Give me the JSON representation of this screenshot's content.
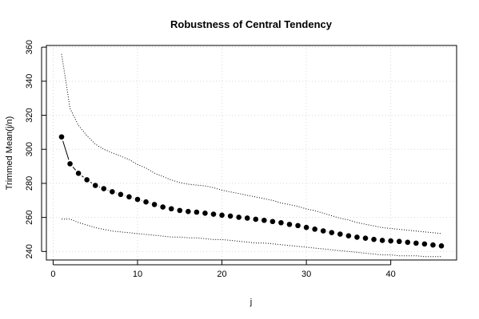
{
  "chart_data": {
    "type": "scatter",
    "title": "Robustness of Central Tendency",
    "xlabel": "j",
    "ylabel": "Trimmed Mean(j/n)",
    "xlim": [
      -0.8,
      47.8
    ],
    "ylim": [
      235,
      361
    ],
    "x_ticks": [
      0,
      10,
      20,
      30,
      40
    ],
    "y_ticks": [
      240,
      260,
      280,
      300,
      320,
      340,
      360
    ],
    "grid": true,
    "legend": "none",
    "series": [
      {
        "role": "trimmed-mean",
        "style": "points",
        "color": "#000000",
        "x": [
          1,
          2,
          3,
          4,
          5,
          6,
          7,
          8,
          9,
          10,
          11,
          12,
          13,
          14,
          15,
          16,
          17,
          18,
          19,
          20,
          21,
          22,
          23,
          24,
          25,
          26,
          27,
          28,
          29,
          30,
          31,
          32,
          33,
          34,
          35,
          36,
          37,
          38,
          39,
          40,
          41,
          42,
          43,
          44,
          45,
          46
        ],
        "y": [
          307.3,
          291.5,
          285.9,
          282.1,
          278.8,
          276.9,
          275.1,
          273.5,
          272.1,
          270.6,
          269.1,
          267.6,
          266.1,
          265.1,
          264.1,
          263.5,
          263.1,
          262.5,
          261.9,
          261.3,
          260.8,
          260.1,
          259.6,
          258.9,
          258.3,
          257.6,
          256.9,
          255.9,
          255.2,
          254.1,
          253.1,
          252.1,
          251.1,
          250.2,
          249.2,
          248.4,
          247.8,
          247.1,
          246.5,
          246.2,
          245.9,
          245.4,
          244.9,
          244.4,
          243.8,
          243.3
        ]
      },
      {
        "role": "upper-bound",
        "style": "dotted",
        "color": "#000000",
        "x": [
          1,
          2,
          3,
          4,
          5,
          6,
          7,
          8,
          9,
          10,
          11,
          12,
          13,
          14,
          15,
          16,
          17,
          18,
          19,
          20,
          21,
          22,
          23,
          24,
          25,
          26,
          27,
          28,
          29,
          30,
          31,
          32,
          33,
          34,
          35,
          36,
          37,
          38,
          39,
          40,
          41,
          42,
          43,
          44,
          45,
          46
        ],
        "y": [
          356,
          324,
          314,
          308,
          303,
          300,
          298,
          296,
          294,
          291,
          289,
          286,
          284,
          282,
          280.5,
          279.5,
          279,
          278.5,
          277.5,
          276,
          275,
          274,
          273,
          272,
          271,
          270,
          268.5,
          267.5,
          266.5,
          265,
          264,
          262.5,
          261,
          259.5,
          258.5,
          257,
          256,
          255,
          254,
          253.5,
          253,
          252.5,
          252,
          251.5,
          251,
          250.5
        ]
      },
      {
        "role": "lower-bound",
        "style": "dotted",
        "color": "#000000",
        "x": [
          1,
          2,
          3,
          4,
          5,
          6,
          7,
          8,
          9,
          10,
          11,
          12,
          13,
          14,
          15,
          16,
          17,
          18,
          19,
          20,
          21,
          22,
          23,
          24,
          25,
          26,
          27,
          28,
          29,
          30,
          31,
          32,
          33,
          34,
          35,
          36,
          37,
          38,
          39,
          40,
          41,
          42,
          43,
          44,
          45,
          46
        ],
        "y": [
          259,
          259,
          257,
          255.5,
          254,
          253,
          252,
          251.5,
          251,
          250.5,
          250,
          249.5,
          249,
          248.5,
          248.5,
          248,
          248,
          247.5,
          247,
          247,
          246.5,
          246,
          245.5,
          245,
          245,
          244.5,
          244,
          243.5,
          243,
          242.5,
          242,
          241.5,
          241,
          240.5,
          240,
          239.5,
          239,
          238.5,
          238,
          238,
          237.5,
          237.5,
          237.5,
          237,
          237,
          237
        ]
      }
    ]
  }
}
